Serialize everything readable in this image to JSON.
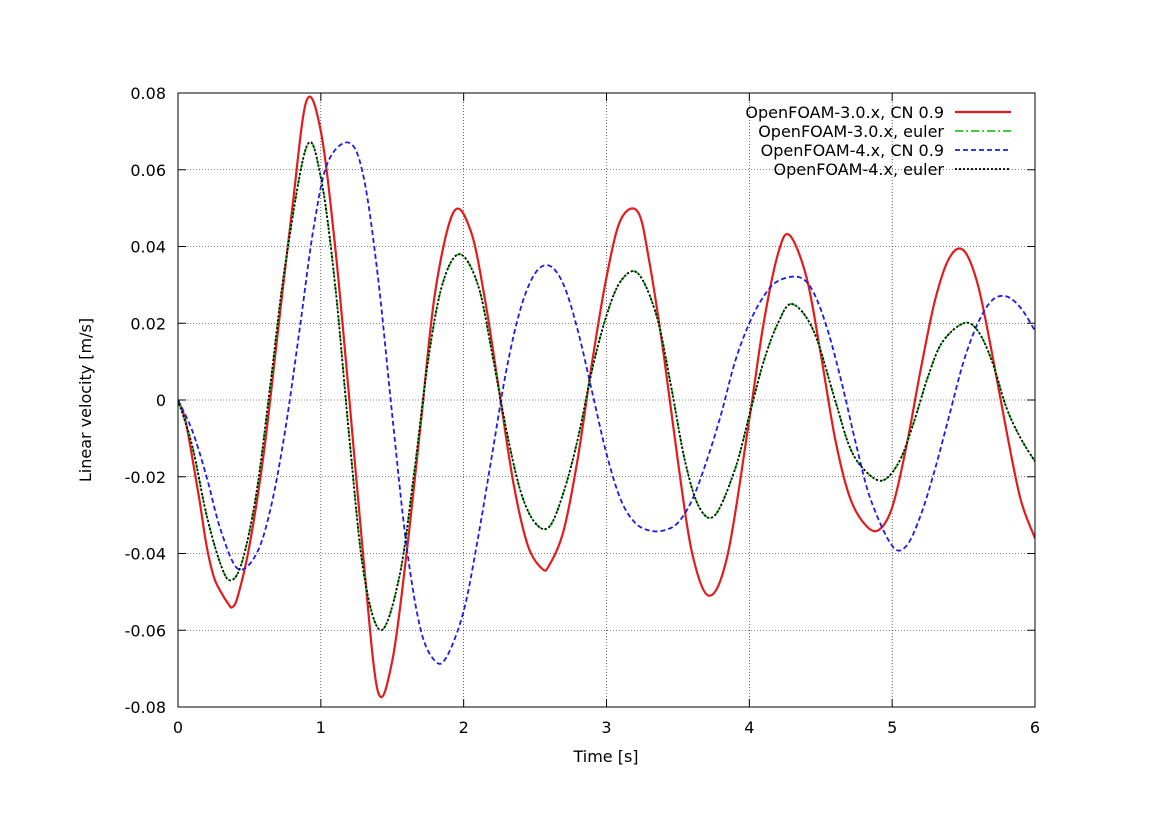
{
  "chart_data": {
    "type": "line",
    "title": "",
    "xlabel": "Time [s]",
    "ylabel": "Linear velocity [m/s]",
    "xlim": [
      0,
      6
    ],
    "ylim": [
      -0.08,
      0.08
    ],
    "xticks": [
      "0",
      "1",
      "2",
      "3",
      "4",
      "5",
      "6"
    ],
    "yticks": [
      "0.08",
      "0.06",
      "0.04",
      "0.02",
      "0",
      "-0.02",
      "-0.04",
      "-0.06",
      "-0.08"
    ],
    "grid": true,
    "legend_position": "top-right",
    "series": [
      {
        "name": "OpenFOAM-3.0.x, CN 0.9",
        "color": "#e41a1c",
        "dash": "solid",
        "x": [
          0,
          0.05,
          0.1,
          0.15,
          0.2,
          0.25,
          0.3,
          0.35,
          0.38,
          0.42,
          0.5,
          0.6,
          0.7,
          0.8,
          0.9,
          1.0,
          1.1,
          1.2,
          1.3,
          1.4,
          1.5,
          1.6,
          1.7,
          1.8,
          1.93,
          2.05,
          2.15,
          2.25,
          2.35,
          2.45,
          2.55,
          2.6,
          2.7,
          2.8,
          2.9,
          3.0,
          3.1,
          3.22,
          3.3,
          3.4,
          3.5,
          3.6,
          3.72,
          3.85,
          4.0,
          4.1,
          4.2,
          4.28,
          4.4,
          4.5,
          4.6,
          4.7,
          4.8,
          4.9,
          5.0,
          5.1,
          5.2,
          5.3,
          5.4,
          5.5,
          5.6,
          5.7,
          5.8,
          5.9,
          6.0
        ],
        "y": [
          0,
          -0.005,
          -0.015,
          -0.026,
          -0.038,
          -0.046,
          -0.05,
          -0.053,
          -0.054,
          -0.051,
          -0.038,
          -0.014,
          0.018,
          0.05,
          0.078,
          0.07,
          0.04,
          0.0,
          -0.042,
          -0.076,
          -0.068,
          -0.04,
          -0.006,
          0.028,
          0.049,
          0.044,
          0.026,
          0.002,
          -0.022,
          -0.038,
          -0.044,
          -0.043,
          -0.034,
          -0.015,
          0.01,
          0.032,
          0.047,
          0.049,
          0.036,
          0.012,
          -0.016,
          -0.04,
          -0.051,
          -0.04,
          -0.005,
          0.02,
          0.038,
          0.043,
          0.032,
          0.012,
          -0.01,
          -0.025,
          -0.032,
          -0.034,
          -0.028,
          -0.012,
          0.008,
          0.026,
          0.037,
          0.039,
          0.03,
          0.012,
          -0.008,
          -0.026,
          -0.036
        ]
      },
      {
        "name": "OpenFOAM-3.0.x, euler",
        "color": "#1ec81e",
        "dash": "dashdot",
        "x": [
          0,
          0.1,
          0.2,
          0.3,
          0.37,
          0.45,
          0.55,
          0.65,
          0.75,
          0.9,
          1.0,
          1.1,
          1.2,
          1.3,
          1.42,
          1.55,
          1.65,
          1.75,
          1.85,
          1.97,
          2.1,
          2.2,
          2.3,
          2.4,
          2.5,
          2.6,
          2.7,
          2.8,
          2.9,
          3.0,
          3.1,
          3.22,
          3.35,
          3.45,
          3.55,
          3.65,
          3.76,
          3.9,
          4.0,
          4.1,
          4.2,
          4.3,
          4.45,
          4.6,
          4.7,
          4.8,
          4.93,
          5.05,
          5.15,
          5.25,
          5.35,
          5.5,
          5.6,
          5.7,
          5.8,
          5.9,
          6.0
        ],
        "y": [
          0,
          -0.012,
          -0.03,
          -0.043,
          -0.047,
          -0.042,
          -0.024,
          0.005,
          0.035,
          0.066,
          0.058,
          0.03,
          -0.01,
          -0.045,
          -0.06,
          -0.046,
          -0.02,
          0.01,
          0.03,
          0.038,
          0.03,
          0.012,
          -0.008,
          -0.024,
          -0.032,
          -0.033,
          -0.024,
          -0.01,
          0.008,
          0.022,
          0.031,
          0.033,
          0.022,
          0.004,
          -0.016,
          -0.028,
          -0.03,
          -0.018,
          -0.004,
          0.01,
          0.02,
          0.025,
          0.018,
          0.0,
          -0.012,
          -0.018,
          -0.021,
          -0.016,
          -0.006,
          0.006,
          0.015,
          0.02,
          0.018,
          0.01,
          -0.002,
          -0.01,
          -0.016
        ]
      },
      {
        "name": "OpenFOAM-4.x, CN 0.9",
        "color": "#1c1ce8",
        "dash": "dashed",
        "x": [
          0,
          0.1,
          0.2,
          0.3,
          0.42,
          0.55,
          0.65,
          0.75,
          0.85,
          0.95,
          1.05,
          1.2,
          1.3,
          1.4,
          1.5,
          1.6,
          1.7,
          1.8,
          1.88,
          2.0,
          2.1,
          2.2,
          2.3,
          2.4,
          2.5,
          2.6,
          2.7,
          2.8,
          2.9,
          3.0,
          3.1,
          3.2,
          3.3,
          3.4,
          3.5,
          3.6,
          3.7,
          3.8,
          3.9,
          4.0,
          4.1,
          4.2,
          4.35,
          4.45,
          4.55,
          4.65,
          4.75,
          4.85,
          5.0,
          5.1,
          5.2,
          5.3,
          5.4,
          5.5,
          5.6,
          5.7,
          5.8,
          5.9,
          6.0
        ],
        "y": [
          0,
          -0.008,
          -0.02,
          -0.034,
          -0.044,
          -0.04,
          -0.028,
          -0.008,
          0.018,
          0.045,
          0.062,
          0.067,
          0.058,
          0.032,
          -0.004,
          -0.038,
          -0.06,
          -0.068,
          -0.067,
          -0.055,
          -0.036,
          -0.014,
          0.008,
          0.024,
          0.033,
          0.035,
          0.03,
          0.018,
          0.002,
          -0.014,
          -0.026,
          -0.032,
          -0.034,
          -0.034,
          -0.032,
          -0.026,
          -0.016,
          -0.004,
          0.01,
          0.02,
          0.027,
          0.031,
          0.032,
          0.028,
          0.018,
          0.004,
          -0.012,
          -0.026,
          -0.038,
          -0.038,
          -0.03,
          -0.018,
          -0.004,
          0.01,
          0.02,
          0.026,
          0.027,
          0.024,
          0.018
        ]
      },
      {
        "name": "OpenFOAM-4.x, euler",
        "color": "#000000",
        "dash": "dotted",
        "x": [
          0,
          0.1,
          0.2,
          0.3,
          0.37,
          0.45,
          0.55,
          0.65,
          0.75,
          0.9,
          1.0,
          1.1,
          1.2,
          1.3,
          1.42,
          1.55,
          1.65,
          1.75,
          1.85,
          1.97,
          2.1,
          2.2,
          2.3,
          2.4,
          2.5,
          2.6,
          2.7,
          2.8,
          2.9,
          3.0,
          3.1,
          3.22,
          3.35,
          3.45,
          3.55,
          3.65,
          3.76,
          3.9,
          4.0,
          4.1,
          4.2,
          4.3,
          4.45,
          4.6,
          4.7,
          4.8,
          4.93,
          5.05,
          5.15,
          5.25,
          5.35,
          5.5,
          5.6,
          5.7,
          5.8,
          5.9,
          6.0
        ],
        "y": [
          0,
          -0.012,
          -0.03,
          -0.043,
          -0.047,
          -0.042,
          -0.024,
          0.005,
          0.035,
          0.066,
          0.058,
          0.03,
          -0.01,
          -0.045,
          -0.06,
          -0.046,
          -0.02,
          0.01,
          0.03,
          0.038,
          0.03,
          0.012,
          -0.008,
          -0.024,
          -0.032,
          -0.033,
          -0.024,
          -0.01,
          0.008,
          0.022,
          0.031,
          0.033,
          0.022,
          0.004,
          -0.016,
          -0.028,
          -0.03,
          -0.018,
          -0.004,
          0.01,
          0.02,
          0.025,
          0.018,
          0.0,
          -0.012,
          -0.018,
          -0.021,
          -0.016,
          -0.006,
          0.006,
          0.015,
          0.02,
          0.018,
          0.01,
          -0.002,
          -0.01,
          -0.016
        ]
      }
    ]
  }
}
